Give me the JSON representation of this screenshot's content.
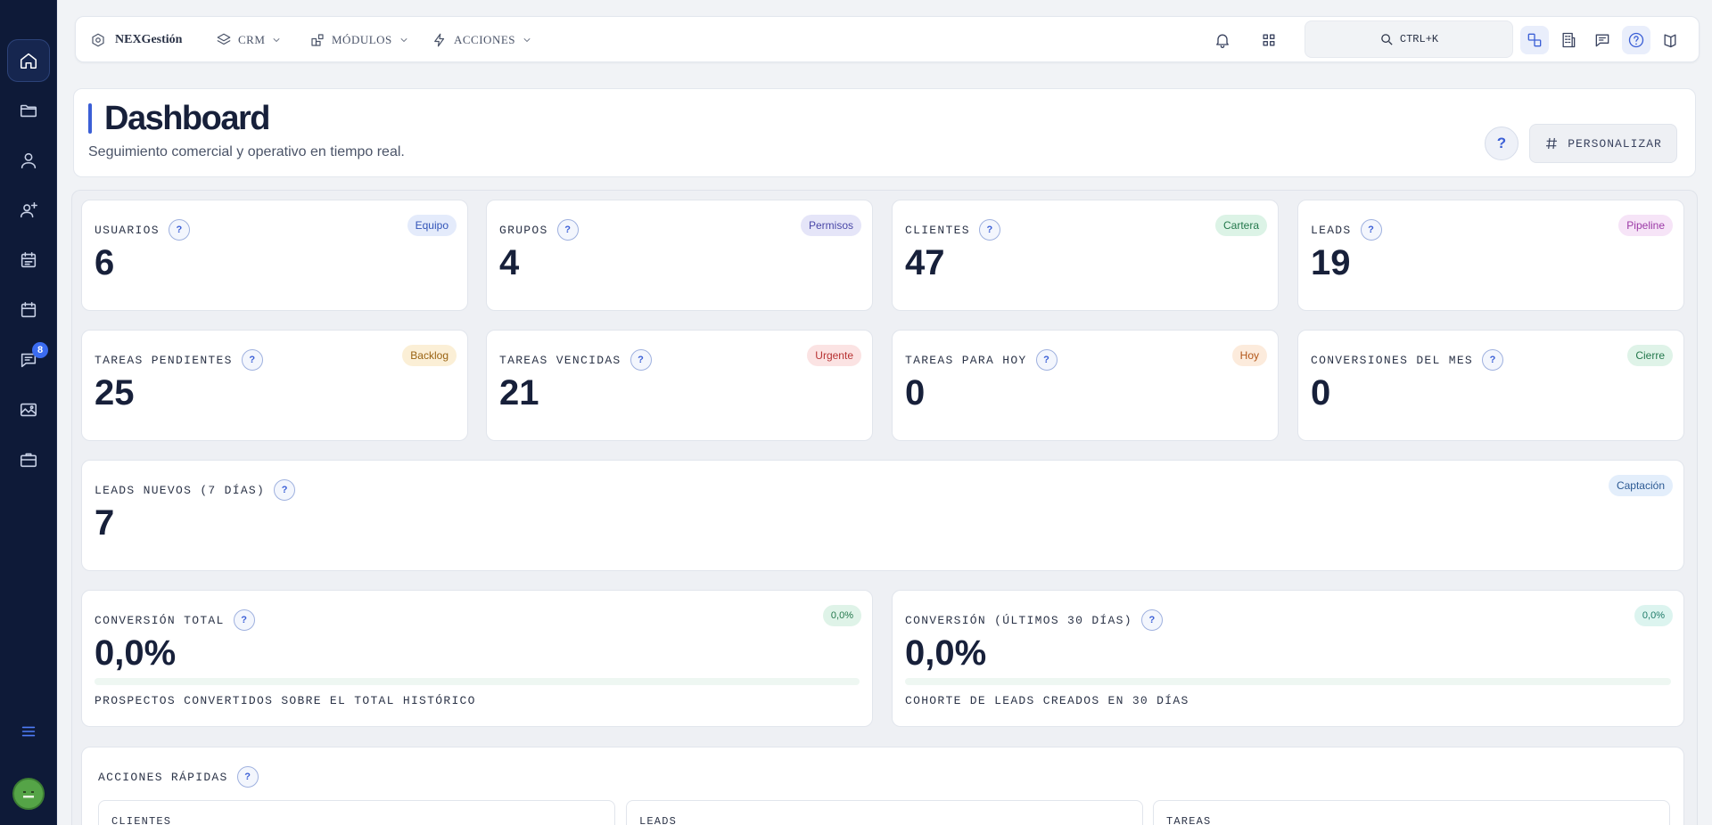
{
  "sidebar": {
    "items": [
      {
        "icon": "home-icon"
      },
      {
        "icon": "folder-icon"
      },
      {
        "icon": "user-icon"
      },
      {
        "icon": "user-plus-icon"
      },
      {
        "icon": "calendar-list-icon"
      },
      {
        "icon": "calendar-icon"
      },
      {
        "icon": "chat-icon",
        "badge": "8"
      },
      {
        "icon": "image-icon"
      },
      {
        "icon": "briefcase-icon"
      }
    ],
    "menu_icon": "menu-icon",
    "avatar_icon": "avatar-face-icon"
  },
  "topbar": {
    "brand": "NEXGestión",
    "menus": [
      {
        "label": "CRM"
      },
      {
        "label": "MÓDULOS"
      },
      {
        "label": "ACCIONES"
      }
    ],
    "search_label": "CTRL+K"
  },
  "header": {
    "title": "Dashboard",
    "subtitle": "Seguimiento comercial y operativo en tiempo real.",
    "help": "?",
    "personalize": "PERSONALIZAR"
  },
  "stats": [
    {
      "label": "USUARIOS",
      "value": "6",
      "tag": "Equipo",
      "tag_bg": "#e4ebfb",
      "tag_color": "#3355b8"
    },
    {
      "label": "GRUPOS",
      "value": "4",
      "tag": "Permisos",
      "tag_bg": "#e5e5f8",
      "tag_color": "#4a48a8"
    },
    {
      "label": "CLIENTES",
      "value": "47",
      "tag": "Cartera",
      "tag_bg": "#dcf3e6",
      "tag_color": "#24784c"
    },
    {
      "label": "LEADS",
      "value": "19",
      "tag": "Pipeline",
      "tag_bg": "#f6e4f7",
      "tag_color": "#9c3aa6"
    },
    {
      "label": "TAREAS PENDIENTES",
      "value": "25",
      "tag": "Backlog",
      "tag_bg": "#fbefd6",
      "tag_color": "#9a6312"
    },
    {
      "label": "TAREAS VENCIDAS",
      "value": "21",
      "tag": "Urgente",
      "tag_bg": "#fbe3e3",
      "tag_color": "#b83333"
    },
    {
      "label": "TAREAS PARA HOY",
      "value": "0",
      "tag": "Hoy",
      "tag_bg": "#fcebdc",
      "tag_color": "#b2561a"
    },
    {
      "label": "CONVERSIONES DEL MES",
      "value": "0",
      "tag": "Cierre",
      "tag_bg": "#dff3e8",
      "tag_color": "#24784c"
    }
  ],
  "leads_new": {
    "label": "LEADS NUEVOS (7 DÍAS)",
    "value": "7",
    "tag": "Captación",
    "tag_bg": "#e3eefb",
    "tag_color": "#2c5a94"
  },
  "conversions": [
    {
      "label": "CONVERSIÓN TOTAL",
      "value": "0,0%",
      "tag": "0,0%",
      "progress": 0,
      "caption": "PROSPECTOS CONVERTIDOS SOBRE EL TOTAL HISTÓRICO"
    },
    {
      "label": "CONVERSIÓN (ÚLTIMOS 30 DÍAS)",
      "value": "0,0%",
      "tag": "0,0%",
      "progress": 0,
      "caption": "COHORTE DE LEADS CREADOS EN 30 DÍAS"
    }
  ],
  "quick_actions": {
    "label": "ACCIONES RÁPIDAS",
    "items": [
      "CLIENTES",
      "LEADS",
      "TAREAS"
    ]
  },
  "colors": {
    "sidebar_bg": "#0e1a38",
    "accent": "#3b5fd6",
    "progress_green": "#42b883"
  }
}
